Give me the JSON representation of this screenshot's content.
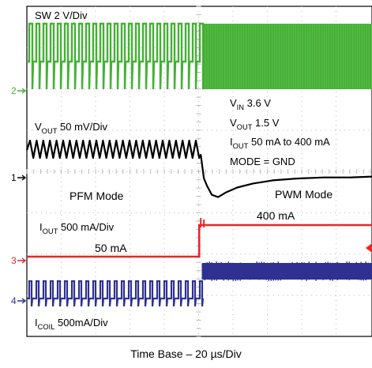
{
  "chart_data": {
    "type": "line",
    "subtype": "oscilloscope-capture",
    "grid": true,
    "colors": {
      "sw": "#44b035",
      "vout": "#000000",
      "iout": "#e8262b",
      "icoil": "#2e3192",
      "grid": "#b9b9b9"
    },
    "channel_markers": [
      "2",
      "1",
      "3",
      "4"
    ],
    "series": [
      {
        "name": "SW",
        "color": "#44b035",
        "scale": "2 V/Div",
        "channel": "2"
      },
      {
        "name": "VOUT",
        "color": "#000000",
        "scale": "50 mV/Div",
        "channel": "1"
      },
      {
        "name": "IOUT",
        "color": "#e8262b",
        "scale": "500 mA/Div",
        "channel": "3"
      },
      {
        "name": "ICOIL",
        "color": "#2e3192",
        "scale": "500mA/Div",
        "channel": "4"
      }
    ],
    "labels": {
      "sw_scale": "SW 2 V/Div",
      "vout_name": "V",
      "vout_sub": "OUT",
      "vout_scale": "50 mV/Div",
      "vin_name": "V",
      "vin_sub": "IN",
      "vin_value": "3.6 V",
      "vout2_name": "V",
      "vout2_sub": "OUT",
      "vout2_value": "1.5 V",
      "iout_name": "I",
      "iout_sub": "OUT",
      "iout_value": "50 mA to 400 mA",
      "mode": "MODE = GND",
      "pfm": "PFM Mode",
      "pwm": "PWM Mode",
      "iout2_name": "I",
      "iout2_sub": "OUT",
      "iout_scale": "500 mA/Div",
      "level_low": "50 mA",
      "level_high": "400 mA",
      "icoil_name": "I",
      "icoil_sub": "COIL",
      "icoil_scale": "500mA/Div"
    },
    "load_step": {
      "from": "50 mA",
      "to": "400 mA",
      "x_div": 5.2
    },
    "xlabel": "Time Base – 20 µs/Div"
  }
}
